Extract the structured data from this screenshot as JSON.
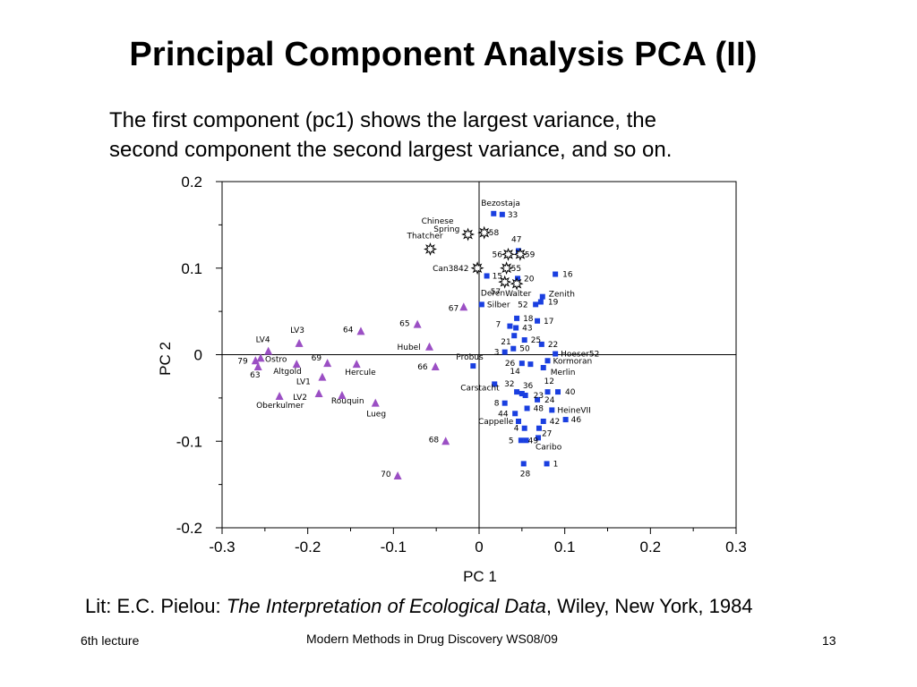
{
  "slide": {
    "title": "Principal Component Analysis PCA (II)",
    "subtitle_lines": [
      "The first component (pc1) shows the largest variance, the",
      "second component the second largest variance, and so on."
    ],
    "lit_prefix": "Lit: E.C. Pielou: ",
    "lit_book": "The Interpretation of Ecological Data",
    "lit_suffix": ", Wiley, New York, 1984",
    "footer_left": "6th lecture",
    "footer_center": "Modern Methods in Drug Discovery WS08/09",
    "page_number": "13"
  },
  "colors": {
    "square": "#1a3fe0",
    "triangle": "#9b4fc4",
    "star": "#000000"
  },
  "chart_data": {
    "type": "scatter",
    "xlabel": "PC 1",
    "ylabel": "PC 2",
    "xlim": [
      -0.3,
      0.3
    ],
    "ylim": [
      -0.2,
      0.2
    ],
    "xticks": [
      "-0.3",
      "-0.2",
      "-0.1",
      "0",
      "0.1",
      "0.2",
      "0.3"
    ],
    "yticks": [
      "0.2",
      "0.1",
      "0",
      "-0.1",
      "-0.2"
    ],
    "grid": false,
    "series": [
      {
        "marker": "square",
        "points": [
          {
            "x": 0.017,
            "y": 0.163,
            "label": "Bezostaja"
          },
          {
            "x": 0.027,
            "y": 0.162,
            "label": "33"
          },
          {
            "x": 0.046,
            "y": 0.12,
            "label": "47"
          },
          {
            "x": 0.009,
            "y": 0.091,
            "label": "15"
          },
          {
            "x": 0.045,
            "y": 0.088,
            "label": "20"
          },
          {
            "x": 0.089,
            "y": 0.093,
            "label": "16"
          },
          {
            "x": 0.074,
            "y": 0.067,
            "label": "Zenith"
          },
          {
            "x": 0.072,
            "y": 0.061,
            "label": "19"
          },
          {
            "x": 0.003,
            "y": 0.058,
            "label": "Silber"
          },
          {
            "x": 0.066,
            "y": 0.058,
            "label": "52"
          },
          {
            "x": 0.044,
            "y": 0.042,
            "label": "18"
          },
          {
            "x": 0.068,
            "y": 0.039,
            "label": "17"
          },
          {
            "x": 0.036,
            "y": 0.033,
            "label": "7"
          },
          {
            "x": 0.043,
            "y": 0.031,
            "label": "43"
          },
          {
            "x": 0.041,
            "y": 0.022,
            "label": "21"
          },
          {
            "x": 0.053,
            "y": 0.017,
            "label": "25"
          },
          {
            "x": 0.073,
            "y": 0.012,
            "label": "22"
          },
          {
            "x": 0.04,
            "y": 0.007,
            "label": "50"
          },
          {
            "x": 0.03,
            "y": 0.003,
            "label": "3"
          },
          {
            "x": 0.089,
            "y": 0.001,
            "label": "Hoeser52"
          },
          {
            "x": -0.007,
            "y": -0.013,
            "label": "Probus"
          },
          {
            "x": 0.05,
            "y": -0.01,
            "label": "26"
          },
          {
            "x": 0.08,
            "y": -0.007,
            "label": "Kormoran"
          },
          {
            "x": 0.06,
            "y": -0.011,
            "label": "14"
          },
          {
            "x": 0.075,
            "y": -0.015,
            "label": "Merlin"
          },
          {
            "x": 0.018,
            "y": -0.034,
            "label": "Carstacht"
          },
          {
            "x": 0.044,
            "y": -0.043,
            "label": "32"
          },
          {
            "x": 0.05,
            "y": -0.045,
            "label": "36"
          },
          {
            "x": 0.054,
            "y": -0.047,
            "label": "23"
          },
          {
            "x": 0.08,
            "y": -0.043,
            "label": "12"
          },
          {
            "x": 0.092,
            "y": -0.043,
            "label": "40"
          },
          {
            "x": 0.03,
            "y": -0.056,
            "label": "8"
          },
          {
            "x": 0.068,
            "y": -0.052,
            "label": "24"
          },
          {
            "x": 0.042,
            "y": -0.068,
            "label": "44"
          },
          {
            "x": 0.056,
            "y": -0.062,
            "label": "48"
          },
          {
            "x": 0.085,
            "y": -0.064,
            "label": "HeineVII"
          },
          {
            "x": 0.046,
            "y": -0.077,
            "label": "Cappelle"
          },
          {
            "x": 0.075,
            "y": -0.077,
            "label": "42"
          },
          {
            "x": 0.101,
            "y": -0.075,
            "label": "46"
          },
          {
            "x": 0.053,
            "y": -0.085,
            "label": "4"
          },
          {
            "x": 0.07,
            "y": -0.085,
            "label": "27"
          },
          {
            "x": 0.049,
            "y": -0.099,
            "label": "5"
          },
          {
            "x": 0.055,
            "y": -0.099,
            "label": "49"
          },
          {
            "x": 0.069,
            "y": -0.096,
            "label": "Caribo"
          },
          {
            "x": 0.052,
            "y": -0.126,
            "label": "28"
          },
          {
            "x": 0.079,
            "y": -0.126,
            "label": "1"
          }
        ]
      },
      {
        "marker": "triangle",
        "points": [
          {
            "x": -0.261,
            "y": -0.007,
            "label": "79"
          },
          {
            "x": -0.255,
            "y": -0.004,
            "label": "Ostro"
          },
          {
            "x": -0.258,
            "y": -0.014,
            "label": "63"
          },
          {
            "x": -0.246,
            "y": 0.004,
            "label": "LV4"
          },
          {
            "x": -0.21,
            "y": 0.013,
            "label": "LV3"
          },
          {
            "x": -0.213,
            "y": -0.011,
            "label": "Altgold"
          },
          {
            "x": -0.177,
            "y": -0.01,
            "label": "69"
          },
          {
            "x": -0.183,
            "y": -0.026,
            "label": "LV1"
          },
          {
            "x": -0.187,
            "y": -0.045,
            "label": "LV2"
          },
          {
            "x": -0.233,
            "y": -0.048,
            "label": "Oberkulmer"
          },
          {
            "x": -0.143,
            "y": -0.011,
            "label": "Hercule"
          },
          {
            "x": -0.16,
            "y": -0.047,
            "label": "Rouquin"
          },
          {
            "x": -0.121,
            "y": -0.056,
            "label": "Lueg"
          },
          {
            "x": -0.138,
            "y": 0.027,
            "label": "64"
          },
          {
            "x": -0.072,
            "y": 0.035,
            "label": "65"
          },
          {
            "x": -0.058,
            "y": 0.009,
            "label": "Hubel"
          },
          {
            "x": -0.051,
            "y": -0.014,
            "label": "66"
          },
          {
            "x": -0.018,
            "y": 0.055,
            "label": "67"
          },
          {
            "x": -0.039,
            "y": -0.1,
            "label": "68"
          },
          {
            "x": -0.095,
            "y": -0.14,
            "label": "70"
          }
        ]
      },
      {
        "marker": "star",
        "points": [
          {
            "x": -0.057,
            "y": 0.122,
            "label": "Thatcher"
          },
          {
            "x": -0.013,
            "y": 0.139,
            "label": "Chinese"
          },
          {
            "x": 0.006,
            "y": 0.141,
            "label": "58"
          },
          {
            "x": 0.034,
            "y": 0.116,
            "label": "56"
          },
          {
            "x": 0.048,
            "y": 0.116,
            "label": "59"
          },
          {
            "x": -0.002,
            "y": 0.1,
            "label": "Can3842"
          },
          {
            "x": 0.032,
            "y": 0.1,
            "label": "55"
          },
          {
            "x": 0.03,
            "y": 0.084,
            "label": "57"
          },
          {
            "x": 0.044,
            "y": 0.082,
            "label": "Walter"
          }
        ]
      }
    ],
    "extra_labels": [
      "Spring",
      "Deren"
    ]
  }
}
